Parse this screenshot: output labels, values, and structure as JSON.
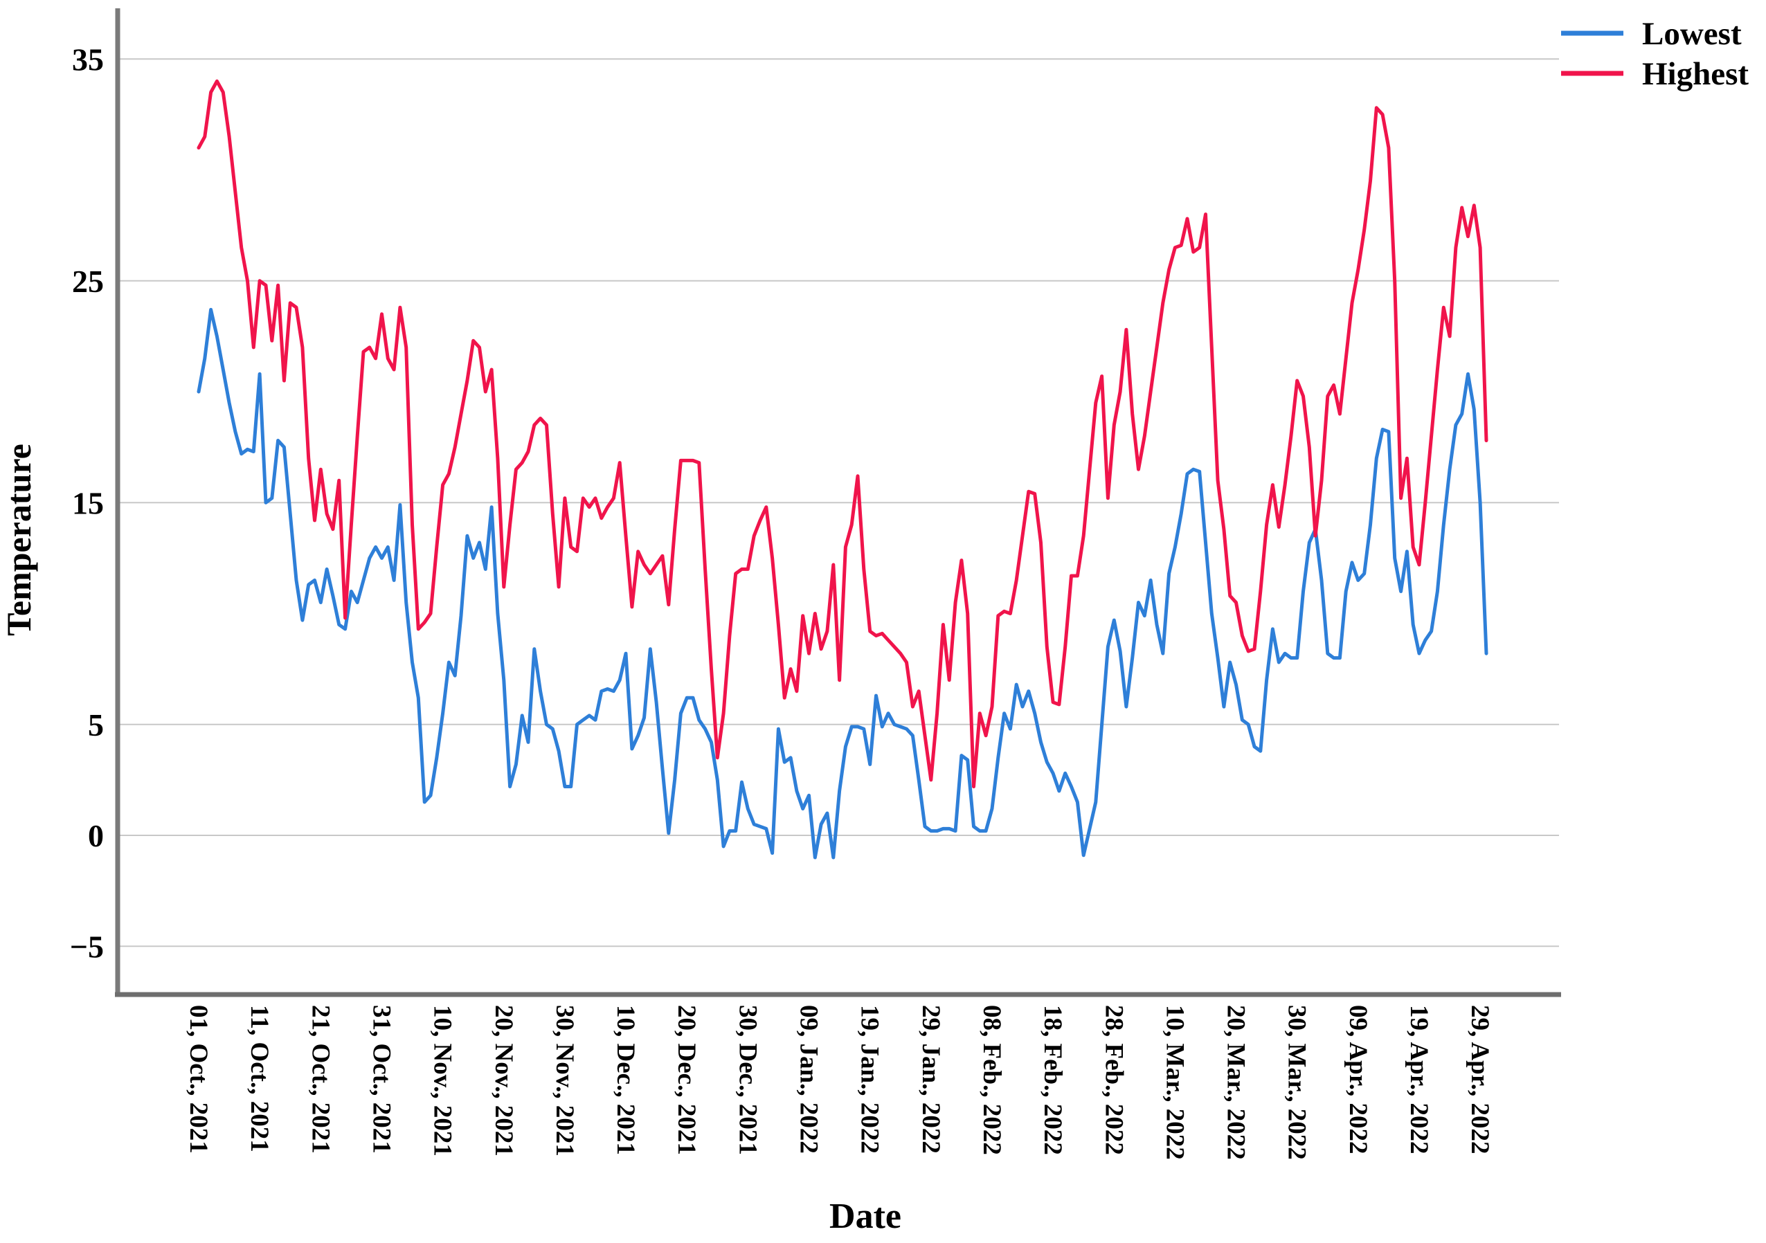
{
  "chart_data": {
    "type": "line",
    "title": "",
    "xlabel": "Date",
    "ylabel": "Temperature",
    "grid": true,
    "legend_position": "top-right",
    "legend": [
      "Lowest",
      "Highest"
    ],
    "ylim": [
      -7.2,
      37
    ],
    "y_ticks": [
      35,
      25,
      15,
      5,
      0,
      -5
    ],
    "y_tick_labels": [
      "35",
      "25",
      "15",
      "5",
      "0",
      "−5"
    ],
    "x_start_date": "01, Oct., 2021",
    "x_end_date": "30, Apr., 2022",
    "x_tick_day_indices": [
      0,
      10,
      20,
      30,
      40,
      50,
      60,
      70,
      80,
      90,
      100,
      110,
      120,
      130,
      140,
      150,
      160,
      170,
      180,
      190,
      200,
      210
    ],
    "x_tick_labels": [
      "01, Oct., 2021",
      "11, Oct., 2021",
      "21, Oct., 2021",
      "31, Oct., 2021",
      "10, Nov., 2021",
      "20, Nov., 2021",
      "30, Nov., 2021",
      "10, Dec., 2021",
      "20, Dec., 2021",
      "30, Dec., 2021",
      "09, Jan., 2022",
      "19, Jan., 2022",
      "29, Jan., 2022",
      "08, Feb., 2022",
      "18, Feb., 2022",
      "28, Feb., 2022",
      "10, Mar., 2022",
      "20, Mar., 2022",
      "30, Mar., 2022",
      "09, Apr., 2022",
      "19, Apr., 2022",
      "29, Apr., 2022"
    ],
    "colors": {
      "lowest": "#2E7FD8",
      "highest": "#F0144B",
      "grid": "#c8c8c8",
      "axis": "#7a7a7a"
    },
    "series": [
      {
        "name": "Lowest",
        "color": "#2E7FD8",
        "values": [
          20,
          21.5,
          23.7,
          22.5,
          21,
          19.5,
          18.2,
          17.2,
          17.4,
          17.3,
          20.8,
          15,
          15.2,
          17.8,
          17.5,
          14.5,
          11.5,
          9.7,
          11.3,
          11.5,
          10.5,
          12,
          10.8,
          9.5,
          9.3,
          11,
          10.5,
          11.5,
          12.5,
          13,
          12.5,
          13,
          11.5,
          14.9,
          10.5,
          7.8,
          6.2,
          1.5,
          1.8,
          3.5,
          5.5,
          7.8,
          7.2,
          9.9,
          13.5,
          12.5,
          13.2,
          12,
          14.8,
          10,
          7,
          2.2,
          3.2,
          5.4,
          4.2,
          8.4,
          6.5,
          5,
          4.8,
          3.8,
          2.2,
          2.2,
          5,
          5.2,
          5.4,
          5.2,
          6.5,
          6.6,
          6.5,
          7,
          8.2,
          3.9,
          4.5,
          5.3,
          8.4,
          6,
          3,
          0.1,
          2.5,
          5.5,
          6.2,
          6.2,
          5.2,
          4.8,
          4.2,
          2.5,
          -0.5,
          0.2,
          0.2,
          2.4,
          1.2,
          0.5,
          0.4,
          0.3,
          -0.8,
          4.8,
          3.3,
          3.5,
          2,
          1.2,
          1.8,
          -1,
          0.5,
          1,
          -1,
          2,
          4,
          4.9,
          4.9,
          4.8,
          3.2,
          6.3,
          4.9,
          5.5,
          5,
          4.9,
          4.8,
          4.5,
          2.5,
          0.4,
          0.2,
          0.2,
          0.3,
          0.3,
          0.2,
          3.6,
          3.4,
          0.4,
          0.2,
          0.2,
          1.2,
          3.5,
          5.5,
          4.8,
          6.8,
          5.8,
          6.5,
          5.5,
          4.2,
          3.3,
          2.8,
          2,
          2.8,
          2.2,
          1.5,
          -0.9,
          0.3,
          1.5,
          5,
          8.5,
          9.7,
          8.3,
          5.8,
          8,
          10.5,
          9.9,
          11.5,
          9.5,
          8.2,
          11.8,
          13,
          14.5,
          16.3,
          16.5,
          16.4,
          13.2,
          10,
          8,
          5.8,
          7.8,
          6.8,
          5.2,
          5,
          4,
          3.8,
          7,
          9.3,
          7.8,
          8.2,
          8,
          8,
          11,
          13.2,
          13.8,
          11.5,
          8.2,
          8,
          8,
          11,
          12.3,
          11.5,
          11.8,
          14,
          17,
          18.3,
          18.2,
          12.5,
          11,
          12.8,
          9.5,
          8.2,
          8.8,
          9.2,
          11,
          14,
          16.5,
          18.5,
          19,
          20.8,
          19.2,
          15,
          8.2
        ]
      },
      {
        "name": "Highest",
        "color": "#F0144B",
        "values": [
          31,
          31.5,
          33.5,
          34,
          33.5,
          31.5,
          29,
          26.5,
          25,
          22,
          25,
          24.8,
          22.3,
          24.8,
          20.5,
          24,
          23.8,
          22,
          17,
          14.2,
          16.5,
          14.5,
          13.8,
          16,
          9.8,
          14,
          18,
          21.8,
          22,
          21.5,
          23.5,
          21.5,
          21,
          23.8,
          22,
          14,
          9.3,
          9.6,
          10,
          13,
          15.8,
          16.3,
          17.5,
          19,
          20.5,
          22.3,
          22,
          20,
          21,
          17,
          11.2,
          14,
          16.5,
          16.8,
          17.3,
          18.5,
          18.8,
          18.5,
          14.5,
          11.2,
          15.2,
          13,
          12.8,
          15.2,
          14.8,
          15.2,
          14.3,
          14.8,
          15.2,
          16.8,
          13.5,
          10.3,
          12.8,
          12.2,
          11.8,
          12.2,
          12.6,
          10.4,
          13.8,
          16.9,
          16.9,
          16.9,
          16.8,
          12,
          7.5,
          3.5,
          5.5,
          9,
          11.8,
          12,
          12,
          13.5,
          14.2,
          14.8,
          12.5,
          9.5,
          6.2,
          7.5,
          6.5,
          9.9,
          8.2,
          10,
          8.4,
          9.2,
          12.2,
          7,
          13,
          14,
          16.2,
          12,
          9.2,
          9,
          9.1,
          8.8,
          8.5,
          8.2,
          7.8,
          5.8,
          6.5,
          4.5,
          2.5,
          5.5,
          9.5,
          7,
          10.5,
          12.4,
          10,
          2.2,
          5.5,
          4.5,
          5.8,
          9.9,
          10.1,
          10,
          11.5,
          13.5,
          15.5,
          15.4,
          13.2,
          8.5,
          6,
          5.9,
          8.5,
          11.7,
          11.7,
          13.5,
          16.5,
          19.5,
          20.7,
          15.2,
          18.5,
          20,
          22.8,
          19,
          16.5,
          18,
          20,
          22,
          24,
          25.5,
          26.5,
          26.6,
          27.8,
          26.3,
          26.5,
          28,
          22,
          16,
          13.8,
          10.8,
          10.5,
          9,
          8.3,
          8.4,
          11,
          14,
          15.8,
          13.9,
          15.8,
          18,
          20.5,
          19.8,
          17.5,
          13.5,
          16,
          19.8,
          20.3,
          19,
          21.5,
          24,
          25.5,
          27.3,
          29.5,
          32.8,
          32.5,
          31,
          25,
          15.2,
          17,
          13,
          12.2,
          15,
          18,
          21,
          23.8,
          22.5,
          26.5,
          28.3,
          27,
          28.4,
          26.5,
          17.8
        ]
      }
    ]
  }
}
